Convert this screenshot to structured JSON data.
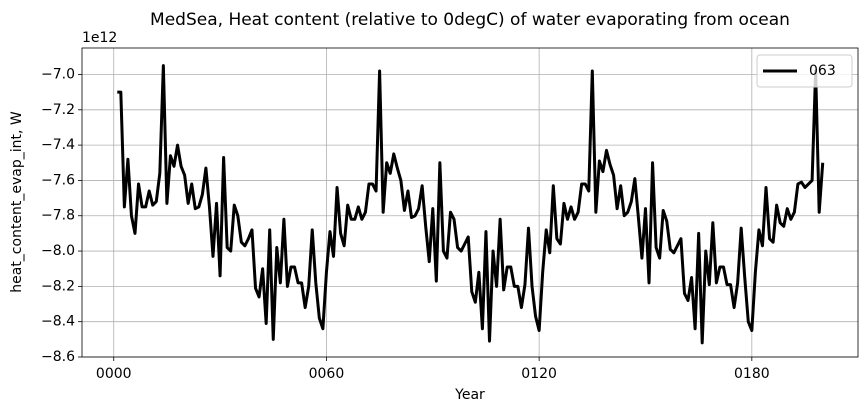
{
  "chart_data": {
    "type": "line",
    "title": "MedSea, Heat content (relative to 0degC) of water evaporating from ocean",
    "xlabel": "Year",
    "ylabel": "heat_content_evap_int, W",
    "y_offset_label": "1e12",
    "xlim": [
      -8.95,
      209.95
    ],
    "ylim": [
      -8.6,
      -6.85
    ],
    "xticks": [
      {
        "value": 0,
        "label": "0000"
      },
      {
        "value": 60,
        "label": "0060"
      },
      {
        "value": 120,
        "label": "0120"
      },
      {
        "value": 180,
        "label": "0180"
      }
    ],
    "yticks": [
      {
        "value": -8.6,
        "label": "−8.6"
      },
      {
        "value": -8.4,
        "label": "−8.4"
      },
      {
        "value": -8.2,
        "label": "−8.2"
      },
      {
        "value": -8,
        "label": "−8.0"
      },
      {
        "value": -7.8,
        "label": "−7.8"
      },
      {
        "value": -7.6,
        "label": "−7.6"
      },
      {
        "value": -7.4,
        "label": "−7.4"
      },
      {
        "value": -7.2,
        "label": "−7.2"
      },
      {
        "value": -7,
        "label": "−7.0"
      }
    ],
    "grid": true,
    "legend": "upper right",
    "x": [
      1,
      2,
      3,
      4,
      5,
      6,
      7,
      8,
      9,
      10,
      11,
      12,
      13,
      14,
      15,
      16,
      17,
      18,
      19,
      20,
      21,
      22,
      23,
      24,
      25,
      26,
      27,
      28,
      29,
      30,
      31,
      32,
      33,
      34,
      35,
      36,
      37,
      38,
      39,
      40,
      41,
      42,
      43,
      44,
      45,
      46,
      47,
      48,
      49,
      50,
      51,
      52,
      53,
      54,
      55,
      56,
      57,
      58,
      59,
      60,
      61,
      62,
      63,
      64,
      65,
      66,
      67,
      68,
      69,
      70,
      71,
      72,
      73,
      74,
      75,
      76,
      77,
      78,
      79,
      80,
      81,
      82,
      83,
      84,
      85,
      86,
      87,
      88,
      89,
      90,
      91,
      92,
      93,
      94,
      95,
      96,
      97,
      98,
      99,
      100,
      101,
      102,
      103,
      104,
      105,
      106,
      107,
      108,
      109,
      110,
      111,
      112,
      113,
      114,
      115,
      116,
      117,
      118,
      119,
      120,
      121,
      122,
      123,
      124,
      125,
      126,
      127,
      128,
      129,
      130,
      131,
      132,
      133,
      134,
      135,
      136,
      137,
      138,
      139,
      140,
      141,
      142,
      143,
      144,
      145,
      146,
      147,
      148,
      149,
      150,
      151,
      152,
      153,
      154,
      155,
      156,
      157,
      158,
      159,
      160,
      161,
      162,
      163,
      164,
      165,
      166,
      167,
      168,
      169,
      170,
      171,
      172,
      173,
      174,
      175,
      176,
      177,
      178,
      179,
      180,
      181,
      182,
      183,
      184,
      185,
      186,
      187,
      188,
      189,
      190,
      191,
      192,
      193,
      194,
      195,
      196,
      197,
      198,
      199,
      200
    ],
    "series": [
      {
        "name": "063",
        "color": "#000000",
        "values": [
          -7.1,
          -7.1,
          -7.75,
          -7.48,
          -7.8,
          -7.9,
          -7.62,
          -7.75,
          -7.75,
          -7.66,
          -7.74,
          -7.72,
          -7.56,
          -6.95,
          -7.73,
          -7.46,
          -7.52,
          -7.4,
          -7.52,
          -7.57,
          -7.73,
          -7.62,
          -7.76,
          -7.75,
          -7.68,
          -7.53,
          -7.75,
          -8.03,
          -7.73,
          -8.14,
          -7.47,
          -7.98,
          -8.0,
          -7.74,
          -7.8,
          -7.95,
          -7.97,
          -7.93,
          -7.88,
          -8.21,
          -8.26,
          -8.1,
          -8.41,
          -7.88,
          -8.5,
          -7.98,
          -8.18,
          -7.82,
          -8.2,
          -8.09,
          -8.09,
          -8.18,
          -8.18,
          -8.32,
          -8.2,
          -7.88,
          -8.18,
          -8.38,
          -8.44,
          -8.12,
          -7.89,
          -8.03,
          -7.64,
          -7.9,
          -7.97,
          -7.74,
          -7.82,
          -7.82,
          -7.75,
          -7.82,
          -7.78,
          -7.62,
          -7.62,
          -7.66,
          -6.98,
          -7.78,
          -7.5,
          -7.56,
          -7.45,
          -7.53,
          -7.6,
          -7.77,
          -7.66,
          -7.81,
          -7.8,
          -7.76,
          -7.63,
          -7.86,
          -8.06,
          -7.76,
          -8.17,
          -7.5,
          -8.0,
          -8.04,
          -7.78,
          -7.82,
          -7.98,
          -8.0,
          -7.96,
          -7.92,
          -8.23,
          -8.29,
          -8.12,
          -8.44,
          -7.89,
          -8.51,
          -8.0,
          -8.2,
          -7.82,
          -8.22,
          -8.09,
          -8.09,
          -8.2,
          -8.2,
          -8.32,
          -8.19,
          -7.87,
          -8.2,
          -8.37,
          -8.45,
          -8.12,
          -7.88,
          -8.01,
          -7.63,
          -7.93,
          -7.96,
          -7.73,
          -7.82,
          -7.75,
          -7.82,
          -7.78,
          -7.62,
          -7.62,
          -7.66,
          -6.98,
          -7.78,
          -7.49,
          -7.55,
          -7.43,
          -7.51,
          -7.57,
          -7.76,
          -7.63,
          -7.8,
          -7.78,
          -7.72,
          -7.59,
          -7.81,
          -8.04,
          -7.76,
          -8.18,
          -7.5,
          -7.98,
          -8.04,
          -7.77,
          -7.83,
          -7.99,
          -8.01,
          -7.97,
          -7.93,
          -8.24,
          -8.28,
          -8.15,
          -8.44,
          -7.9,
          -8.52,
          -8.0,
          -8.19,
          -7.84,
          -8.18,
          -8.09,
          -8.09,
          -8.19,
          -8.19,
          -8.32,
          -8.18,
          -7.87,
          -8.15,
          -8.4,
          -8.45,
          -8.12,
          -7.88,
          -7.97,
          -7.64,
          -7.93,
          -7.95,
          -7.74,
          -7.84,
          -7.86,
          -7.76,
          -7.82,
          -7.78,
          -7.62,
          -7.61,
          -7.64,
          -7.62,
          -7.6,
          -6.98,
          -7.78,
          -7.5
        ]
      }
    ]
  }
}
